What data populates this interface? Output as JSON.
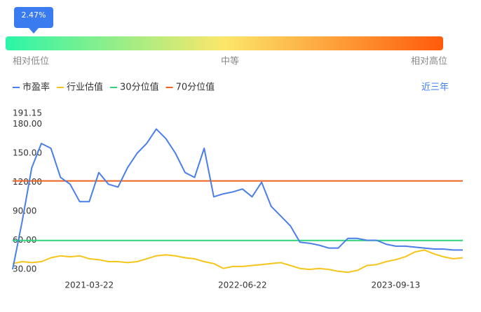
{
  "gauge": {
    "value_label": "2.47%",
    "value": 2.47,
    "labels": [
      "相对低位",
      "中等",
      "相对高位"
    ]
  },
  "range_link": "近三年",
  "chart_data": {
    "type": "line",
    "categories": [
      null,
      null,
      null,
      null,
      null,
      null,
      null,
      null,
      "2021-03-22",
      null,
      null,
      null,
      null,
      null,
      null,
      null,
      null,
      null,
      null,
      null,
      null,
      null,
      null,
      null,
      "2022-06-22",
      null,
      null,
      null,
      null,
      null,
      null,
      null,
      null,
      null,
      null,
      null,
      null,
      null,
      null,
      null,
      "2023-09-13",
      null,
      null,
      null,
      null,
      null,
      null,
      null
    ],
    "series": [
      {
        "name": "市盈率",
        "color": "#4a7ee8",
        "values": [
          30,
          80,
          135,
          160,
          155,
          125,
          118,
          100,
          100,
          130,
          118,
          115,
          135,
          150,
          160,
          175,
          165,
          150,
          130,
          125,
          155,
          105,
          108,
          110,
          113,
          105,
          120,
          95,
          85,
          75,
          58,
          57,
          55,
          52,
          52,
          62,
          62,
          60,
          60,
          56,
          54,
          54,
          53,
          52,
          51,
          51,
          50,
          50
        ]
      },
      {
        "name": "行业估值",
        "color": "#f5c518",
        "values": [
          36,
          38,
          37,
          38,
          42,
          44,
          43,
          44,
          41,
          40,
          38,
          38,
          37,
          38,
          41,
          44,
          45,
          44,
          42,
          41,
          38,
          36,
          31,
          33,
          33,
          34,
          35,
          36,
          37,
          34,
          31,
          30,
          31,
          30,
          28,
          27,
          29,
          34,
          35,
          38,
          40,
          43,
          48,
          50,
          46,
          43,
          41,
          42
        ]
      },
      {
        "name": "30分位值",
        "color": "#2ed47a",
        "values": [
          59.8,
          59.8,
          59.8,
          59.8,
          59.8,
          59.8,
          59.8,
          59.8,
          59.8,
          59.8,
          59.8,
          59.8,
          59.8,
          59.8,
          59.8,
          59.8,
          59.8,
          59.8,
          59.8,
          59.8,
          59.8,
          59.8,
          59.8,
          59.8,
          59.8,
          59.8,
          59.8,
          59.8,
          59.8,
          59.8,
          59.8,
          59.8,
          59.8,
          59.8,
          59.8,
          59.8,
          59.8,
          59.8,
          59.8,
          59.8,
          59.8,
          59.8,
          59.8,
          59.8,
          59.8,
          59.8,
          59.8,
          59.8
        ]
      },
      {
        "name": "70分位值",
        "color": "#f0601e",
        "values": [
          121.4,
          121.4,
          121.4,
          121.4,
          121.4,
          121.4,
          121.4,
          121.4,
          121.4,
          121.4,
          121.4,
          121.4,
          121.4,
          121.4,
          121.4,
          121.4,
          121.4,
          121.4,
          121.4,
          121.4,
          121.4,
          121.4,
          121.4,
          121.4,
          121.4,
          121.4,
          121.4,
          121.4,
          121.4,
          121.4,
          121.4,
          121.4,
          121.4,
          121.4,
          121.4,
          121.4,
          121.4,
          121.4,
          121.4,
          121.4,
          121.4,
          121.4,
          121.4,
          121.4,
          121.4,
          121.4,
          121.4,
          121.4
        ]
      }
    ],
    "ylim": [
      25,
      191.15
    ],
    "yticks": [
      191.15,
      {
        "value": 180,
        "label": "180.00"
      },
      {
        "value": 150,
        "label": "150.00"
      },
      {
        "value": 120,
        "label": "120.00"
      },
      {
        "value": 90,
        "label": "90.00"
      },
      {
        "value": 60,
        "label": "60.00"
      },
      {
        "value": 30,
        "label": "30.00"
      }
    ],
    "grid": false
  }
}
